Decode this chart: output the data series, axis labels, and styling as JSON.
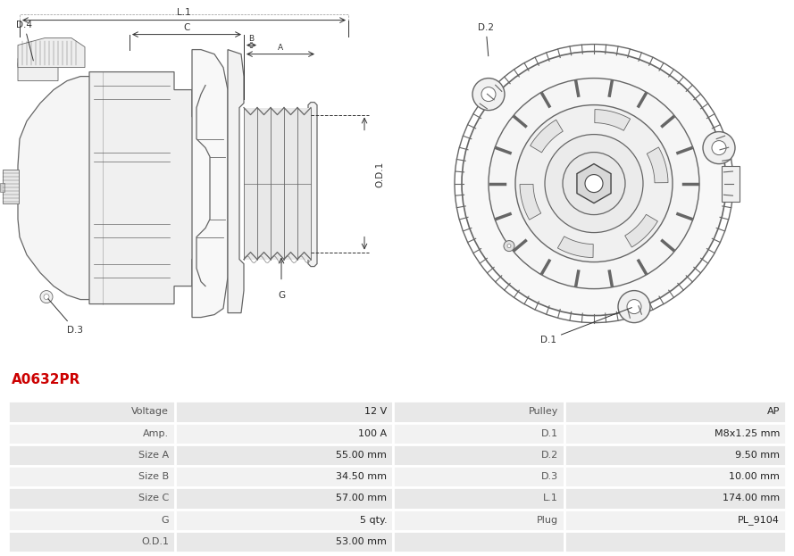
{
  "title": "A0632PR",
  "title_color": "#cc0000",
  "bg_color": "#ffffff",
  "table_row_bg1": "#e8e8e8",
  "table_row_bg2": "#f2f2f2",
  "table_border_color": "#ffffff",
  "left_col_labels": [
    "Voltage",
    "Amp.",
    "Size A",
    "Size B",
    "Size C",
    "G",
    "O.D.1"
  ],
  "left_col_values": [
    "12 V",
    "100 A",
    "55.00 mm",
    "34.50 mm",
    "57.00 mm",
    "5 qty.",
    "53.00 mm"
  ],
  "right_col_labels": [
    "Pulley",
    "D.1",
    "D.2",
    "D.3",
    "L.1",
    "Plug",
    ""
  ],
  "right_col_values": [
    "AP",
    "M8x1.25 mm",
    "9.50 mm",
    "10.00 mm",
    "174.00 mm",
    "PL_9104",
    ""
  ],
  "font_size_title": 11,
  "font_size_table": 8,
  "table_label_color": "#555555",
  "table_value_color": "#222222",
  "outline_color": "#666666",
  "dim_color": "#444444",
  "drawing_bg": "#ffffff"
}
